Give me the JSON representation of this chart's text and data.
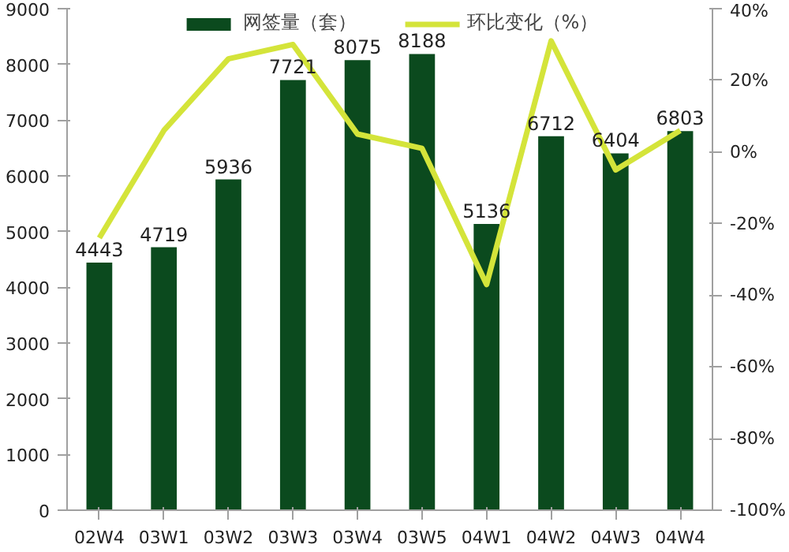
{
  "chart_data": {
    "type": "bar",
    "categories": [
      "02W4",
      "03W1",
      "03W2",
      "03W3",
      "03W4",
      "03W5",
      "04W1",
      "04W2",
      "04W3",
      "04W4"
    ],
    "series": [
      {
        "name": "网签量（套）",
        "color": "#0b4a1e",
        "values": [
          4443,
          4719,
          5936,
          7721,
          8075,
          8188,
          5136,
          6712,
          6404,
          6803
        ],
        "value_labels": [
          "4443",
          "4719",
          "5936",
          "7721",
          "8075",
          "8188",
          "5136",
          "6712",
          "6404",
          "6803"
        ]
      },
      {
        "name": "环比变化（%）",
        "color": "#d4e43a",
        "type": "line",
        "axis": "y2",
        "values": [
          -24,
          6,
          26,
          30,
          5,
          1,
          -37,
          31,
          -5,
          6
        ]
      }
    ],
    "ylim": [
      0,
      9000
    ],
    "yticks": [
      0,
      1000,
      2000,
      3000,
      4000,
      5000,
      6000,
      7000,
      8000,
      9000
    ],
    "y2lim": [
      -100,
      40
    ],
    "y2ticks": [
      {
        "value": -100,
        "label": "-100%"
      },
      {
        "value": -80,
        "label": "-80%"
      },
      {
        "value": -60,
        "label": "-60%"
      },
      {
        "value": -40,
        "label": "-40%"
      },
      {
        "value": -20,
        "label": "-20%"
      },
      {
        "value": 0,
        "label": "0%"
      },
      {
        "value": 20,
        "label": "20%"
      },
      {
        "value": 40,
        "label": "40%"
      }
    ],
    "grid": false,
    "legend": "top"
  }
}
